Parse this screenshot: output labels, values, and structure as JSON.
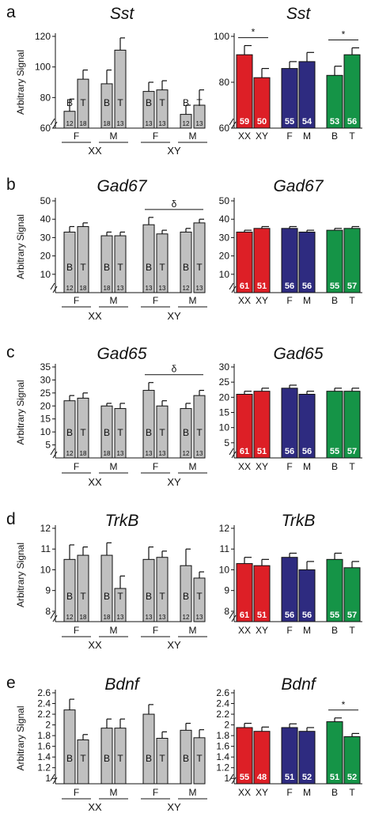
{
  "chart_data": [
    {
      "id": "a-left",
      "panel_label": "a",
      "type": "bar",
      "title": "Sst",
      "ylabel": "Arbitrary Signal",
      "ylim": [
        60,
        120
      ],
      "yticks": [
        60,
        80,
        100,
        120
      ],
      "bars": [
        {
          "value": 71,
          "err": 8,
          "color": "#c0c0c0",
          "inner": "B",
          "n": "12"
        },
        {
          "value": 92,
          "err": 6,
          "color": "#c0c0c0",
          "inner": "T",
          "n": "18"
        },
        {
          "value": 89,
          "err": 9,
          "color": "#c0c0c0",
          "inner": "B",
          "n": "18"
        },
        {
          "value": 111,
          "err": 8,
          "color": "#c0c0c0",
          "inner": "T",
          "n": "13"
        },
        {
          "value": 84,
          "err": 6,
          "color": "#c0c0c0",
          "inner": "B",
          "n": "13"
        },
        {
          "value": 85,
          "err": 6,
          "color": "#c0c0c0",
          "inner": "T",
          "n": "13"
        },
        {
          "value": 69,
          "err": 6,
          "color": "#c0c0c0",
          "inner": "B",
          "n": "12"
        },
        {
          "value": 75,
          "err": 10,
          "color": "#c0c0c0",
          "inner": "T",
          "n": "13"
        }
      ],
      "cats": [
        "F",
        "M",
        "F",
        "M"
      ],
      "groups": [
        "XX",
        "XY"
      ],
      "annotations": []
    },
    {
      "id": "a-right",
      "type": "bar",
      "title": "Sst",
      "ylim": [
        60,
        100
      ],
      "yticks": [
        60,
        80,
        100
      ],
      "bars": [
        {
          "value": 92,
          "err": 4,
          "color": "#dd1f26",
          "n": "59"
        },
        {
          "value": 82,
          "err": 4,
          "color": "#dd1f26",
          "n": "50"
        },
        {
          "value": 86,
          "err": 3,
          "color": "#2e2b80",
          "n": "55"
        },
        {
          "value": 89,
          "err": 4,
          "color": "#2e2b80",
          "n": "54"
        },
        {
          "value": 83,
          "err": 4,
          "color": "#159447",
          "n": "53"
        },
        {
          "value": 92,
          "err": 3,
          "color": "#159447",
          "n": "56"
        }
      ],
      "cats": [
        "XX",
        "XY",
        "F",
        "M",
        "B",
        "T"
      ],
      "annotations": [
        {
          "from": 0,
          "to": 1,
          "symbol": "*"
        },
        {
          "from": 4,
          "to": 5,
          "symbol": "*"
        }
      ]
    },
    {
      "id": "b-left",
      "panel_label": "b",
      "type": "bar",
      "title": "Gad67",
      "ylabel": "Arbitrary Signal",
      "ylim": [
        0,
        50
      ],
      "yticks": [
        10,
        20,
        30,
        40,
        50
      ],
      "bars": [
        {
          "value": 33,
          "err": 3,
          "color": "#c0c0c0",
          "inner": "B",
          "n": "12"
        },
        {
          "value": 36,
          "err": 2,
          "color": "#c0c0c0",
          "inner": "T",
          "n": "18"
        },
        {
          "value": 31,
          "err": 2,
          "color": "#c0c0c0",
          "inner": "B",
          "n": "18"
        },
        {
          "value": 31,
          "err": 2,
          "color": "#c0c0c0",
          "inner": "T",
          "n": "13"
        },
        {
          "value": 37,
          "err": 4,
          "color": "#c0c0c0",
          "inner": "B",
          "n": "13"
        },
        {
          "value": 32,
          "err": 2,
          "color": "#c0c0c0",
          "inner": "T",
          "n": "13"
        },
        {
          "value": 33,
          "err": 2,
          "color": "#c0c0c0",
          "inner": "B",
          "n": "12"
        },
        {
          "value": 38,
          "err": 2,
          "color": "#c0c0c0",
          "inner": "T",
          "n": "13"
        }
      ],
      "cats": [
        "F",
        "M",
        "F",
        "M"
      ],
      "groups": [
        "XX",
        "XY"
      ],
      "annotations": [
        {
          "from": 4,
          "to": 7,
          "symbol": "δ"
        }
      ]
    },
    {
      "id": "b-right",
      "type": "bar",
      "title": "Gad67",
      "ylim": [
        0,
        50
      ],
      "yticks": [
        10,
        20,
        30,
        40,
        50
      ],
      "bars": [
        {
          "value": 33,
          "err": 1,
          "color": "#dd1f26",
          "n": "61"
        },
        {
          "value": 35,
          "err": 1,
          "color": "#dd1f26",
          "n": "51"
        },
        {
          "value": 35,
          "err": 1,
          "color": "#2e2b80",
          "n": "56"
        },
        {
          "value": 33,
          "err": 1,
          "color": "#2e2b80",
          "n": "56"
        },
        {
          "value": 34,
          "err": 1,
          "color": "#159447",
          "n": "55"
        },
        {
          "value": 35,
          "err": 1,
          "color": "#159447",
          "n": "57"
        }
      ],
      "cats": [
        "XX",
        "XY",
        "F",
        "M",
        "B",
        "T"
      ],
      "annotations": []
    },
    {
      "id": "c-left",
      "panel_label": "c",
      "type": "bar",
      "title": "Gad65",
      "ylabel": "Arbitrary Signal",
      "ylim": [
        0,
        35
      ],
      "yticks": [
        5,
        10,
        15,
        20,
        25,
        30,
        35
      ],
      "bars": [
        {
          "value": 22,
          "err": 2,
          "color": "#c0c0c0",
          "inner": "B",
          "n": "12"
        },
        {
          "value": 23,
          "err": 2,
          "color": "#c0c0c0",
          "inner": "T",
          "n": "18"
        },
        {
          "value": 20,
          "err": 1,
          "color": "#c0c0c0",
          "inner": "B",
          "n": "18"
        },
        {
          "value": 19,
          "err": 2,
          "color": "#c0c0c0",
          "inner": "T",
          "n": "13"
        },
        {
          "value": 26,
          "err": 3,
          "color": "#c0c0c0",
          "inner": "B",
          "n": "13"
        },
        {
          "value": 20,
          "err": 2,
          "color": "#c0c0c0",
          "inner": "T",
          "n": "13"
        },
        {
          "value": 19,
          "err": 2,
          "color": "#c0c0c0",
          "inner": "B",
          "n": "12"
        },
        {
          "value": 24,
          "err": 2,
          "color": "#c0c0c0",
          "inner": "T",
          "n": "13"
        }
      ],
      "cats": [
        "F",
        "M",
        "F",
        "M"
      ],
      "groups": [
        "XX",
        "XY"
      ],
      "annotations": [
        {
          "from": 4,
          "to": 7,
          "symbol": "δ"
        }
      ]
    },
    {
      "id": "c-right",
      "type": "bar",
      "title": "Gad65",
      "ylim": [
        0,
        30
      ],
      "yticks": [
        5,
        10,
        15,
        20,
        25,
        30
      ],
      "bars": [
        {
          "value": 21,
          "err": 1,
          "color": "#dd1f26",
          "n": "61"
        },
        {
          "value": 22,
          "err": 1,
          "color": "#dd1f26",
          "n": "51"
        },
        {
          "value": 23,
          "err": 1,
          "color": "#2e2b80",
          "n": "56"
        },
        {
          "value": 21,
          "err": 1,
          "color": "#2e2b80",
          "n": "56"
        },
        {
          "value": 22,
          "err": 1,
          "color": "#159447",
          "n": "55"
        },
        {
          "value": 22,
          "err": 1,
          "color": "#159447",
          "n": "57"
        }
      ],
      "cats": [
        "XX",
        "XY",
        "F",
        "M",
        "B",
        "T"
      ],
      "annotations": []
    },
    {
      "id": "d-left",
      "panel_label": "d",
      "type": "bar",
      "title": "TrkB",
      "ylabel": "Arbitrary Signal",
      "ylim": [
        7.5,
        12
      ],
      "yticks": [
        8,
        9,
        10,
        11,
        12
      ],
      "bars": [
        {
          "value": 10.5,
          "err": 0.7,
          "color": "#c0c0c0",
          "inner": "B",
          "n": "12"
        },
        {
          "value": 10.7,
          "err": 0.4,
          "color": "#c0c0c0",
          "inner": "T",
          "n": "18"
        },
        {
          "value": 10.7,
          "err": 0.6,
          "color": "#c0c0c0",
          "inner": "B",
          "n": "18"
        },
        {
          "value": 9.1,
          "err": 0.6,
          "color": "#c0c0c0",
          "inner": "T",
          "n": "13"
        },
        {
          "value": 10.5,
          "err": 0.6,
          "color": "#c0c0c0",
          "inner": "B",
          "n": "13"
        },
        {
          "value": 10.6,
          "err": 0.3,
          "color": "#c0c0c0",
          "inner": "T",
          "n": "13"
        },
        {
          "value": 10.2,
          "err": 0.8,
          "color": "#c0c0c0",
          "inner": "B",
          "n": "12"
        },
        {
          "value": 9.6,
          "err": 0.3,
          "color": "#c0c0c0",
          "inner": "T",
          "n": "13"
        }
      ],
      "cats": [
        "F",
        "M",
        "F",
        "M"
      ],
      "groups": [
        "XX",
        "XY"
      ],
      "annotations": []
    },
    {
      "id": "d-right",
      "type": "bar",
      "title": "TrkB",
      "ylim": [
        7.5,
        12
      ],
      "yticks": [
        8,
        9,
        10,
        11,
        12
      ],
      "bars": [
        {
          "value": 10.3,
          "err": 0.3,
          "color": "#dd1f26",
          "n": "61"
        },
        {
          "value": 10.2,
          "err": 0.3,
          "color": "#dd1f26",
          "n": "51"
        },
        {
          "value": 10.6,
          "err": 0.2,
          "color": "#2e2b80",
          "n": "56"
        },
        {
          "value": 10.0,
          "err": 0.4,
          "color": "#2e2b80",
          "n": "56"
        },
        {
          "value": 10.5,
          "err": 0.3,
          "color": "#159447",
          "n": "55"
        },
        {
          "value": 10.1,
          "err": 0.3,
          "color": "#159447",
          "n": "57"
        }
      ],
      "cats": [
        "XX",
        "XY",
        "F",
        "M",
        "B",
        "T"
      ],
      "annotations": []
    },
    {
      "id": "e-left",
      "panel_label": "e",
      "type": "bar",
      "title": "Bdnf",
      "ylabel": "Arbitrary Signal",
      "ylim": [
        0.9,
        2.6
      ],
      "yticks": [
        1.0,
        1.2,
        1.4,
        1.6,
        1.8,
        2.0,
        2.2,
        2.4,
        2.6
      ],
      "bars": [
        {
          "value": 2.28,
          "err": 0.2,
          "color": "#c0c0c0",
          "inner": "B",
          "n": ""
        },
        {
          "value": 1.72,
          "err": 0.1,
          "color": "#c0c0c0",
          "inner": "T",
          "n": ""
        },
        {
          "value": 1.94,
          "err": 0.17,
          "color": "#c0c0c0",
          "inner": "B",
          "n": ""
        },
        {
          "value": 1.94,
          "err": 0.17,
          "color": "#c0c0c0",
          "inner": "T",
          "n": ""
        },
        {
          "value": 2.2,
          "err": 0.18,
          "color": "#c0c0c0",
          "inner": "B",
          "n": ""
        },
        {
          "value": 1.75,
          "err": 0.12,
          "color": "#c0c0c0",
          "inner": "T",
          "n": ""
        },
        {
          "value": 1.9,
          "err": 0.13,
          "color": "#c0c0c0",
          "inner": "B",
          "n": ""
        },
        {
          "value": 1.76,
          "err": 0.15,
          "color": "#c0c0c0",
          "inner": "T",
          "n": ""
        }
      ],
      "cats": [
        "F",
        "M",
        "F",
        "M"
      ],
      "groups": [
        "XX",
        "XY"
      ],
      "annotations": []
    },
    {
      "id": "e-right",
      "type": "bar",
      "title": "Bdnf",
      "ylim": [
        0.9,
        2.6
      ],
      "yticks": [
        1.0,
        1.2,
        1.4,
        1.6,
        1.8,
        2.0,
        2.2,
        2.4,
        2.6
      ],
      "bars": [
        {
          "value": 1.95,
          "err": 0.08,
          "color": "#dd1f26",
          "n": "55"
        },
        {
          "value": 1.88,
          "err": 0.08,
          "color": "#dd1f26",
          "n": "48"
        },
        {
          "value": 1.95,
          "err": 0.07,
          "color": "#2e2b80",
          "n": "51"
        },
        {
          "value": 1.88,
          "err": 0.07,
          "color": "#2e2b80",
          "n": "52"
        },
        {
          "value": 2.06,
          "err": 0.07,
          "color": "#159447",
          "n": "51"
        },
        {
          "value": 1.78,
          "err": 0.06,
          "color": "#159447",
          "n": "52"
        }
      ],
      "cats": [
        "XX",
        "XY",
        "F",
        "M",
        "B",
        "T"
      ],
      "annotations": [
        {
          "from": 4,
          "to": 5,
          "symbol": "*"
        }
      ]
    }
  ]
}
